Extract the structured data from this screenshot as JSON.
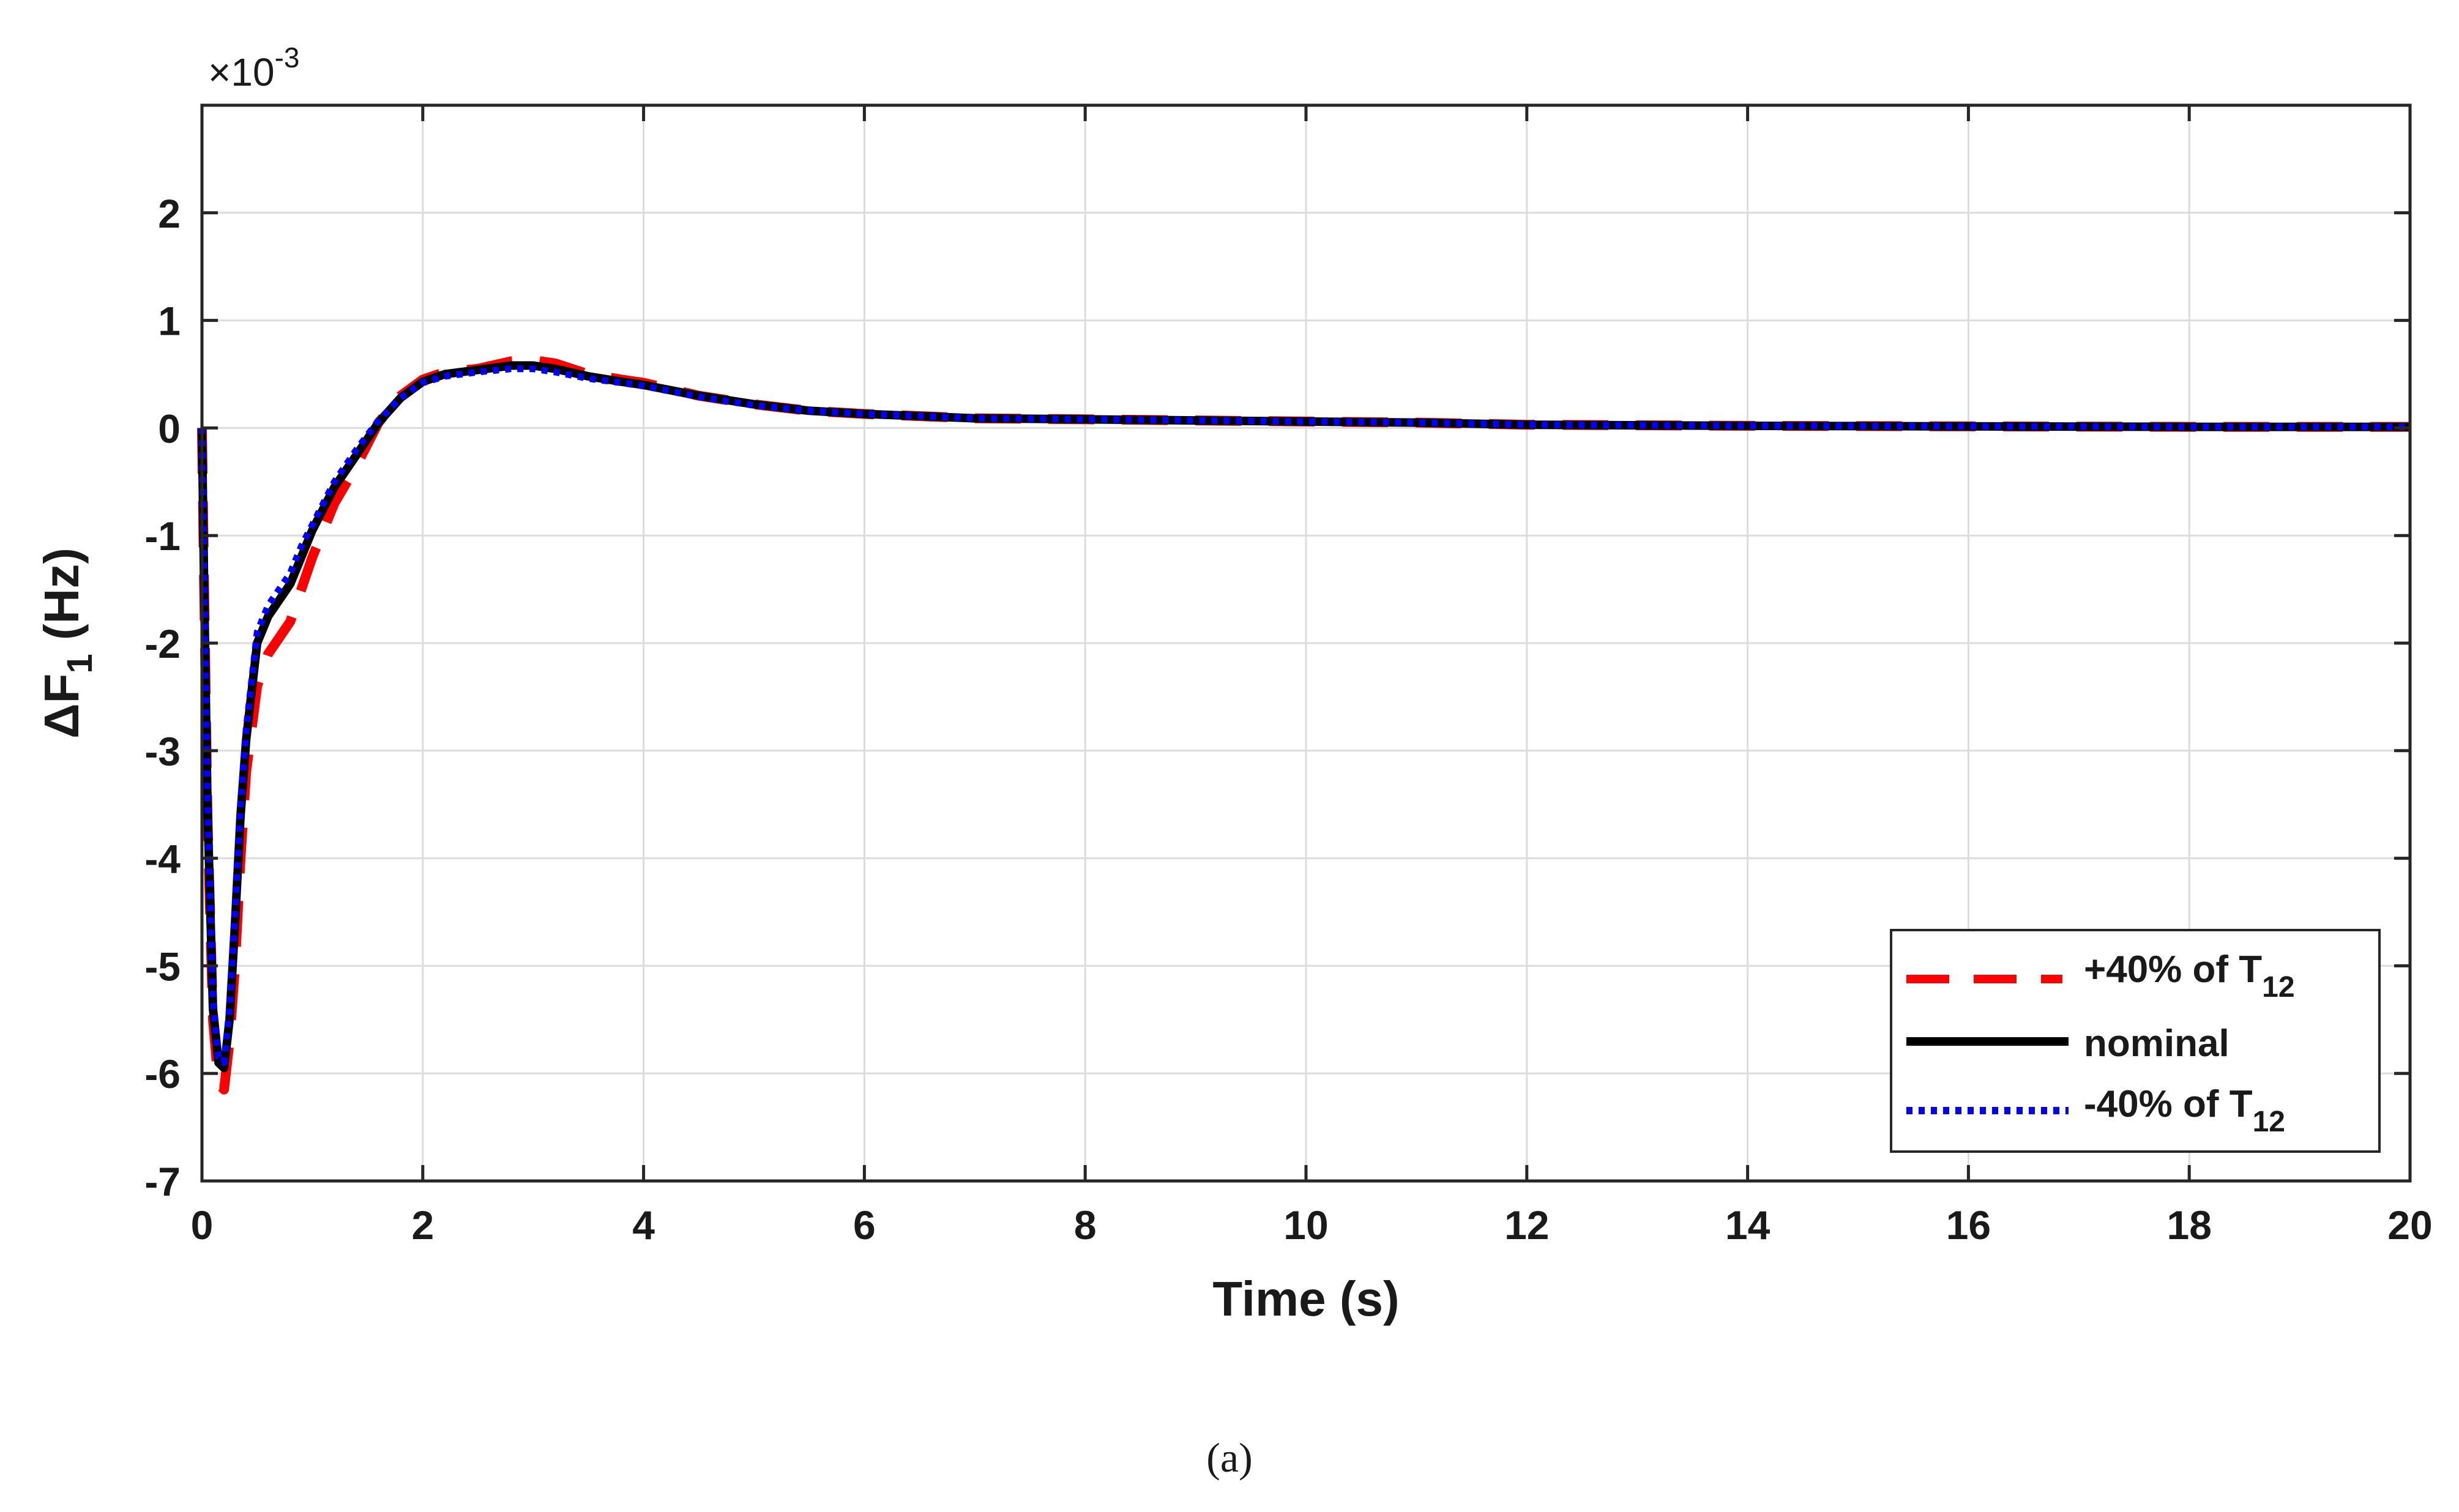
{
  "chart_data": {
    "type": "line",
    "xlabel": "Time (s)",
    "ylabel": {
      "prefix": "ΔF",
      "sub": "1",
      "suffix": " (Hz)"
    },
    "y_exponent": {
      "prefix": "×10",
      "sup": "-3"
    },
    "xlim": [
      0,
      20
    ],
    "ylim": [
      -7,
      3
    ],
    "x_ticks": [
      0,
      2,
      4,
      6,
      8,
      10,
      12,
      14,
      16,
      18,
      20
    ],
    "y_ticks": [
      -7,
      -6,
      -5,
      -4,
      -3,
      -2,
      -1,
      0,
      1,
      2
    ],
    "grid": true,
    "legend_position": "bottom-right",
    "series": [
      {
        "name": {
          "prefix": "+40% of T",
          "sub": "12"
        },
        "color": "#ff0000",
        "style": "dashed",
        "x": [
          0,
          0.02,
          0.05,
          0.1,
          0.15,
          0.2,
          0.25,
          0.3,
          0.35,
          0.4,
          0.5,
          0.6,
          0.7,
          0.8,
          0.9,
          1.0,
          1.2,
          1.4,
          1.6,
          1.8,
          2.0,
          2.2,
          2.5,
          2.8,
          3.0,
          3.2,
          3.5,
          3.8,
          4.0,
          4.5,
          5.0,
          5.5,
          6.0,
          7.0,
          8.0,
          9.0,
          10.0,
          11.0,
          12.0,
          14.0,
          16.0,
          18.0,
          20.0
        ],
        "y": [
          0,
          -1.5,
          -3.6,
          -5.5,
          -6.1,
          -6.15,
          -5.7,
          -5.0,
          -4.0,
          -3.2,
          -2.4,
          -2.1,
          -1.95,
          -1.8,
          -1.5,
          -1.2,
          -0.7,
          -0.35,
          0.05,
          0.3,
          0.45,
          0.52,
          0.55,
          0.62,
          0.63,
          0.6,
          0.5,
          0.45,
          0.42,
          0.3,
          0.22,
          0.16,
          0.13,
          0.09,
          0.08,
          0.07,
          0.06,
          0.05,
          0.03,
          0.02,
          0.015,
          0.01,
          0.01
        ]
      },
      {
        "name": "nominal",
        "color": "#000000",
        "style": "solid",
        "x": [
          0,
          0.02,
          0.05,
          0.1,
          0.15,
          0.2,
          0.25,
          0.3,
          0.35,
          0.4,
          0.5,
          0.6,
          0.7,
          0.8,
          0.9,
          1.0,
          1.2,
          1.4,
          1.6,
          1.8,
          2.0,
          2.2,
          2.5,
          2.8,
          3.0,
          3.2,
          3.5,
          3.8,
          4.0,
          4.5,
          5.0,
          5.5,
          6.0,
          7.0,
          8.0,
          9.0,
          10.0,
          11.0,
          12.0,
          14.0,
          16.0,
          18.0,
          20.0
        ],
        "y": [
          0,
          -1.5,
          -3.5,
          -5.4,
          -5.9,
          -5.95,
          -5.5,
          -4.6,
          -3.6,
          -2.9,
          -2.0,
          -1.75,
          -1.6,
          -1.45,
          -1.2,
          -0.95,
          -0.55,
          -0.25,
          0.05,
          0.28,
          0.43,
          0.5,
          0.54,
          0.58,
          0.58,
          0.55,
          0.48,
          0.43,
          0.4,
          0.3,
          0.22,
          0.16,
          0.13,
          0.09,
          0.08,
          0.07,
          0.06,
          0.05,
          0.03,
          0.02,
          0.015,
          0.01,
          0.01
        ]
      },
      {
        "name": {
          "prefix": "-40% of T",
          "sub": "12"
        },
        "color": "#0000ff",
        "style": "dotted",
        "x": [
          0,
          0.02,
          0.05,
          0.1,
          0.15,
          0.2,
          0.25,
          0.3,
          0.35,
          0.4,
          0.5,
          0.6,
          0.7,
          0.8,
          0.9,
          1.0,
          1.2,
          1.4,
          1.6,
          1.8,
          2.0,
          2.2,
          2.5,
          2.8,
          3.0,
          3.2,
          3.5,
          3.8,
          4.0,
          4.5,
          5.0,
          5.5,
          6.0,
          7.0,
          8.0,
          9.0,
          10.0,
          11.0,
          12.0,
          14.0,
          16.0,
          18.0,
          20.0
        ],
        "y": [
          0,
          -1.5,
          -3.4,
          -5.3,
          -5.85,
          -5.9,
          -5.4,
          -4.5,
          -3.5,
          -2.8,
          -1.9,
          -1.65,
          -1.5,
          -1.35,
          -1.1,
          -0.9,
          -0.5,
          -0.2,
          0.07,
          0.28,
          0.42,
          0.48,
          0.52,
          0.55,
          0.55,
          0.52,
          0.46,
          0.42,
          0.39,
          0.29,
          0.21,
          0.16,
          0.13,
          0.09,
          0.08,
          0.07,
          0.06,
          0.05,
          0.03,
          0.02,
          0.015,
          0.01,
          0.01
        ]
      }
    ]
  },
  "caption": "(a)"
}
